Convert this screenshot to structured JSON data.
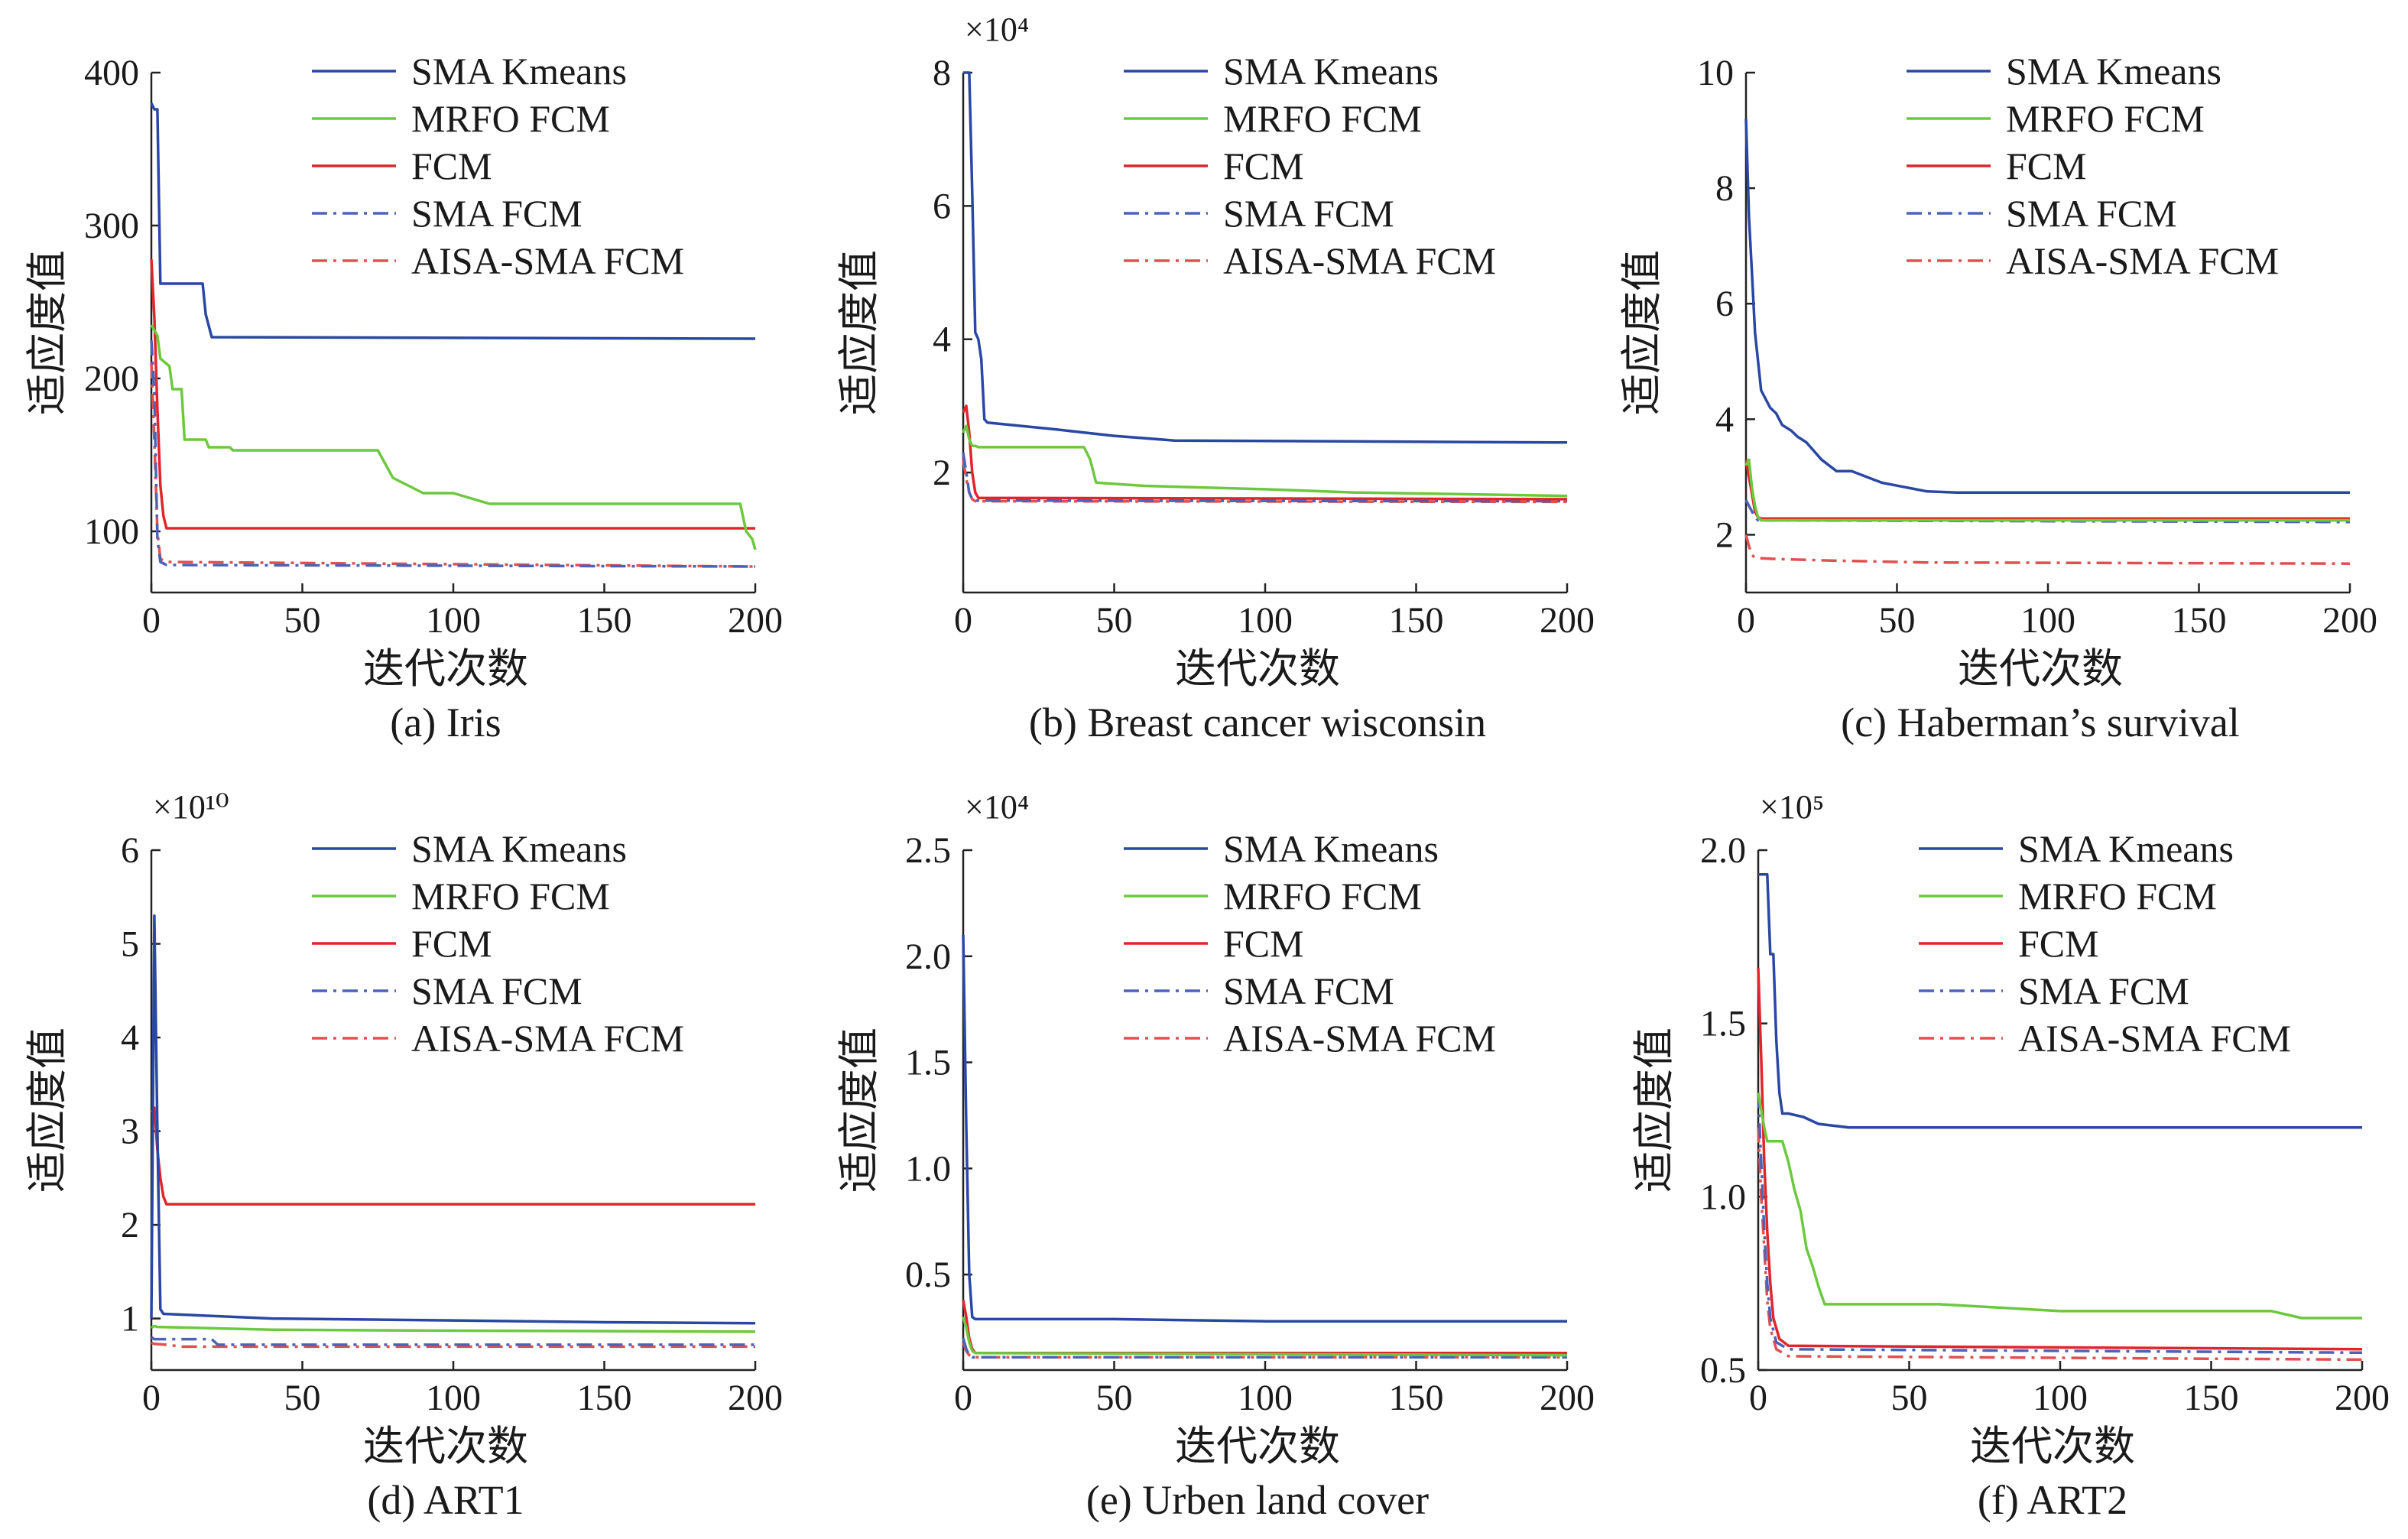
{
  "figure": {
    "xlabel_common": "迭代次数",
    "ylabel_common": "适应度值"
  },
  "legend_labels": [
    "SMA Kmeans",
    "MRFO FCM",
    "FCM",
    "SMA FCM",
    "AISA-SMA FCM"
  ],
  "series_styles": [
    {
      "name": "SMA Kmeans",
      "color": "#2a47a3",
      "dash": "solid"
    },
    {
      "name": "MRFO FCM",
      "color": "#6cc93f",
      "dash": "solid"
    },
    {
      "name": "FCM",
      "color": "#e0262b",
      "dash": "solid"
    },
    {
      "name": "SMA FCM",
      "color": "#4b63b6",
      "dash": "dashdot"
    },
    {
      "name": "AISA-SMA FCM",
      "color": "#e05050",
      "dash": "dashdot"
    }
  ],
  "chart_data": [
    {
      "type": "line",
      "caption": "(a) Iris",
      "xlabel": "迭代次数",
      "ylabel": "适应度值",
      "multiplier": "",
      "xlim": [
        0,
        200
      ],
      "ylim": [
        60,
        400
      ],
      "xticks": [
        0,
        50,
        100,
        150,
        200
      ],
      "xtick_labels": [
        "0",
        "50",
        "100",
        "150",
        "200"
      ],
      "yticks": [
        100,
        200,
        300,
        400
      ],
      "ytick_labels": [
        "100",
        "200",
        "300",
        "400"
      ],
      "series": [
        {
          "name": "SMA Kmeans",
          "x": [
            0,
            1,
            2,
            3,
            4,
            17,
            18,
            20,
            200
          ],
          "y": [
            380,
            376,
            376,
            262,
            262,
            262,
            242,
            227,
            226
          ]
        },
        {
          "name": "MRFO FCM",
          "x": [
            0,
            2,
            3,
            6,
            7,
            10,
            11,
            18,
            19,
            26,
            27,
            75,
            80,
            85,
            90,
            100,
            112,
            195,
            197,
            199,
            200
          ],
          "y": [
            235,
            228,
            213,
            208,
            193,
            193,
            160,
            160,
            155,
            155,
            153,
            153,
            135,
            130,
            125,
            125,
            118,
            118,
            100,
            95,
            88
          ]
        },
        {
          "name": "FCM",
          "x": [
            0,
            1,
            2,
            3,
            4,
            5,
            200
          ],
          "y": [
            278,
            240,
            180,
            130,
            110,
            102,
            102
          ]
        },
        {
          "name": "SMA FCM",
          "x": [
            0,
            1,
            2,
            3,
            5,
            200
          ],
          "y": [
            225,
            190,
            95,
            80,
            78,
            77
          ]
        },
        {
          "name": "AISA-SMA FCM",
          "x": [
            0,
            1,
            2,
            3,
            5,
            200
          ],
          "y": [
            210,
            160,
            100,
            82,
            80,
            77
          ]
        }
      ]
    },
    {
      "type": "line",
      "caption": "(b) Breast cancer wisconsin",
      "xlabel": "迭代次数",
      "ylabel": "适应度值",
      "multiplier": "×10⁴",
      "xlim": [
        0,
        200
      ],
      "ylim": [
        0.2,
        8
      ],
      "xticks": [
        0,
        50,
        100,
        150,
        200
      ],
      "xtick_labels": [
        "0",
        "50",
        "100",
        "150",
        "200"
      ],
      "yticks": [
        2,
        4,
        6,
        8
      ],
      "ytick_labels": [
        "2",
        "4",
        "6",
        "8"
      ],
      "series": [
        {
          "name": "SMA Kmeans",
          "x": [
            0,
            1,
            2,
            3,
            4,
            5,
            6,
            7,
            8,
            30,
            50,
            70,
            200
          ],
          "y": [
            8.0,
            8.0,
            8.0,
            6.2,
            4.1,
            4.0,
            3.7,
            2.8,
            2.75,
            2.65,
            2.55,
            2.48,
            2.45
          ]
        },
        {
          "name": "MRFO FCM",
          "x": [
            0,
            1,
            2,
            3,
            4,
            5,
            40,
            42,
            44,
            50,
            60,
            100,
            130,
            200
          ],
          "y": [
            2.6,
            2.7,
            2.5,
            2.4,
            2.4,
            2.38,
            2.38,
            2.2,
            1.85,
            1.83,
            1.8,
            1.75,
            1.7,
            1.65
          ]
        },
        {
          "name": "FCM",
          "x": [
            0,
            1,
            2,
            3,
            4,
            5,
            200
          ],
          "y": [
            2.9,
            3.0,
            2.6,
            2.0,
            1.7,
            1.62,
            1.6
          ]
        },
        {
          "name": "SMA FCM",
          "x": [
            0,
            1,
            2,
            3,
            4,
            200
          ],
          "y": [
            2.3,
            2.0,
            1.7,
            1.6,
            1.58,
            1.57
          ]
        },
        {
          "name": "AISA-SMA FCM",
          "x": [
            0,
            1,
            2,
            3,
            4,
            200
          ],
          "y": [
            2.2,
            1.9,
            1.7,
            1.6,
            1.57,
            1.56
          ]
        }
      ]
    },
    {
      "type": "line",
      "caption": "(c) Haberman’s survival",
      "xlabel": "迭代次数",
      "ylabel": "适应度值",
      "multiplier": "",
      "xlim": [
        0,
        200
      ],
      "ylim": [
        1,
        10
      ],
      "xticks": [
        0,
        50,
        100,
        150,
        200
      ],
      "xtick_labels": [
        "0",
        "50",
        "100",
        "150",
        "200"
      ],
      "yticks": [
        2,
        4,
        6,
        8,
        10
      ],
      "ytick_labels": [
        "2",
        "4",
        "6",
        "8",
        "10"
      ],
      "series": [
        {
          "name": "SMA Kmeans",
          "x": [
            0,
            1,
            2,
            3,
            4,
            5,
            6,
            8,
            10,
            12,
            15,
            17,
            20,
            25,
            30,
            35,
            40,
            45,
            50,
            55,
            60,
            70,
            200
          ],
          "y": [
            9.2,
            7.5,
            6.5,
            5.5,
            5.0,
            4.5,
            4.4,
            4.2,
            4.1,
            3.9,
            3.8,
            3.7,
            3.6,
            3.3,
            3.1,
            3.1,
            3.0,
            2.9,
            2.85,
            2.8,
            2.75,
            2.73,
            2.73
          ]
        },
        {
          "name": "MRFO FCM",
          "x": [
            0,
            1,
            2,
            3,
            4,
            5,
            200
          ],
          "y": [
            3.2,
            3.3,
            2.8,
            2.5,
            2.3,
            2.25,
            2.25
          ]
        },
        {
          "name": "FCM",
          "x": [
            0,
            1,
            2,
            3,
            4,
            5,
            200
          ],
          "y": [
            3.3,
            3.0,
            2.7,
            2.4,
            2.3,
            2.28,
            2.28
          ]
        },
        {
          "name": "SMA FCM",
          "x": [
            0,
            1,
            2,
            3,
            4,
            200
          ],
          "y": [
            2.6,
            2.5,
            2.4,
            2.3,
            2.25,
            2.22
          ]
        },
        {
          "name": "AISA-SMA FCM",
          "x": [
            0,
            1,
            2,
            3,
            10,
            30,
            60,
            200
          ],
          "y": [
            2.0,
            1.8,
            1.65,
            1.6,
            1.58,
            1.55,
            1.52,
            1.5
          ]
        }
      ]
    },
    {
      "type": "line",
      "caption": "(d) ART1",
      "xlabel": "迭代次数",
      "ylabel": "适应度值",
      "multiplier": "×10¹⁰",
      "xlim": [
        0,
        200
      ],
      "ylim": [
        0.45,
        6
      ],
      "xticks": [
        0,
        50,
        100,
        150,
        200
      ],
      "xtick_labels": [
        "0",
        "50",
        "100",
        "150",
        "200"
      ],
      "yticks": [
        1,
        2,
        3,
        4,
        5,
        6
      ],
      "ytick_labels": [
        "1",
        "2",
        "3",
        "4",
        "5",
        "6"
      ],
      "series": [
        {
          "name": "SMA Kmeans",
          "x": [
            0,
            1,
            2,
            3,
            4,
            40,
            100,
            150,
            200
          ],
          "y": [
            1.0,
            5.3,
            3.0,
            1.1,
            1.05,
            1.0,
            0.98,
            0.96,
            0.95
          ]
        },
        {
          "name": "MRFO FCM",
          "x": [
            0,
            1,
            2,
            40,
            100,
            200
          ],
          "y": [
            0.9,
            0.92,
            0.91,
            0.88,
            0.87,
            0.86
          ]
        },
        {
          "name": "FCM",
          "x": [
            0,
            1,
            2,
            3,
            4,
            5,
            200
          ],
          "y": [
            3.2,
            3.25,
            2.8,
            2.5,
            2.3,
            2.22,
            2.22
          ]
        },
        {
          "name": "SMA FCM",
          "x": [
            0,
            1,
            2,
            3,
            20,
            22,
            200
          ],
          "y": [
            0.8,
            0.78,
            0.78,
            0.78,
            0.78,
            0.72,
            0.72
          ]
        },
        {
          "name": "AISA-SMA FCM",
          "x": [
            0,
            1,
            5,
            10,
            200
          ],
          "y": [
            0.74,
            0.73,
            0.72,
            0.7,
            0.7
          ]
        }
      ]
    },
    {
      "type": "line",
      "caption": "(e) Urben land cover",
      "xlabel": "迭代次数",
      "ylabel": "适应度值",
      "multiplier": "×10⁴",
      "xlim": [
        0,
        200
      ],
      "ylim": [
        0.05,
        2.5
      ],
      "xticks": [
        0,
        50,
        100,
        150,
        200
      ],
      "xtick_labels": [
        "0",
        "50",
        "100",
        "150",
        "200"
      ],
      "yticks": [
        0.5,
        1.0,
        1.5,
        2.0,
        2.5
      ],
      "ytick_labels": [
        "0.5",
        "1.0",
        "1.5",
        "2.0",
        "2.5"
      ],
      "series": [
        {
          "name": "SMA Kmeans",
          "x": [
            0,
            1,
            2,
            3,
            4,
            50,
            100,
            200
          ],
          "y": [
            2.1,
            1.2,
            0.5,
            0.3,
            0.29,
            0.29,
            0.28,
            0.28
          ]
        },
        {
          "name": "MRFO FCM",
          "x": [
            0,
            1,
            2,
            3,
            4,
            200
          ],
          "y": [
            0.3,
            0.25,
            0.18,
            0.14,
            0.13,
            0.12
          ]
        },
        {
          "name": "FCM",
          "x": [
            0,
            1,
            2,
            3,
            4,
            200
          ],
          "y": [
            0.38,
            0.3,
            0.2,
            0.15,
            0.13,
            0.13
          ]
        },
        {
          "name": "SMA FCM",
          "x": [
            0,
            1,
            2,
            3,
            200
          ],
          "y": [
            0.2,
            0.15,
            0.12,
            0.11,
            0.11
          ]
        },
        {
          "name": "AISA-SMA FCM",
          "x": [
            0,
            1,
            2,
            3,
            200
          ],
          "y": [
            0.18,
            0.14,
            0.12,
            0.11,
            0.11
          ]
        }
      ]
    },
    {
      "type": "line",
      "caption": "(f) ART2",
      "xlabel": "迭代次数",
      "ylabel": "适应度值",
      "multiplier": "×10⁵",
      "xlim": [
        0,
        200
      ],
      "ylim": [
        0.5,
        2.0
      ],
      "xticks": [
        0,
        50,
        100,
        150,
        200
      ],
      "xtick_labels": [
        "0",
        "50",
        "100",
        "150",
        "200"
      ],
      "yticks": [
        0.5,
        1.0,
        1.5,
        2.0
      ],
      "ytick_labels": [
        "0.5",
        "1.0",
        "1.5",
        "2.0"
      ],
      "series": [
        {
          "name": "SMA Kmeans",
          "x": [
            0,
            1,
            2,
            3,
            4,
            5,
            6,
            7,
            8,
            10,
            15,
            20,
            30,
            60,
            100,
            200
          ],
          "y": [
            1.93,
            1.93,
            1.93,
            1.93,
            1.7,
            1.7,
            1.45,
            1.3,
            1.24,
            1.24,
            1.23,
            1.21,
            1.2,
            1.2,
            1.2,
            1.2
          ]
        },
        {
          "name": "MRFO FCM",
          "x": [
            0,
            2,
            3,
            5,
            8,
            10,
            12,
            14,
            16,
            18,
            20,
            22,
            60,
            80,
            100,
            170,
            180,
            200
          ],
          "y": [
            1.3,
            1.2,
            1.16,
            1.16,
            1.16,
            1.1,
            1.02,
            0.96,
            0.85,
            0.8,
            0.74,
            0.69,
            0.69,
            0.68,
            0.67,
            0.67,
            0.65,
            0.65
          ]
        },
        {
          "name": "FCM",
          "x": [
            0,
            1,
            2,
            3,
            4,
            5,
            7,
            10,
            200
          ],
          "y": [
            1.66,
            1.4,
            1.1,
            0.9,
            0.75,
            0.65,
            0.59,
            0.57,
            0.56
          ]
        },
        {
          "name": "SMA FCM",
          "x": [
            0,
            1,
            2,
            3,
            4,
            6,
            10,
            200
          ],
          "y": [
            1.3,
            1.1,
            0.9,
            0.75,
            0.65,
            0.58,
            0.56,
            0.55
          ]
        },
        {
          "name": "AISA-SMA FCM",
          "x": [
            0,
            1,
            2,
            3,
            4,
            6,
            10,
            200
          ],
          "y": [
            1.2,
            1.0,
            0.85,
            0.7,
            0.62,
            0.56,
            0.54,
            0.53
          ]
        }
      ]
    }
  ]
}
